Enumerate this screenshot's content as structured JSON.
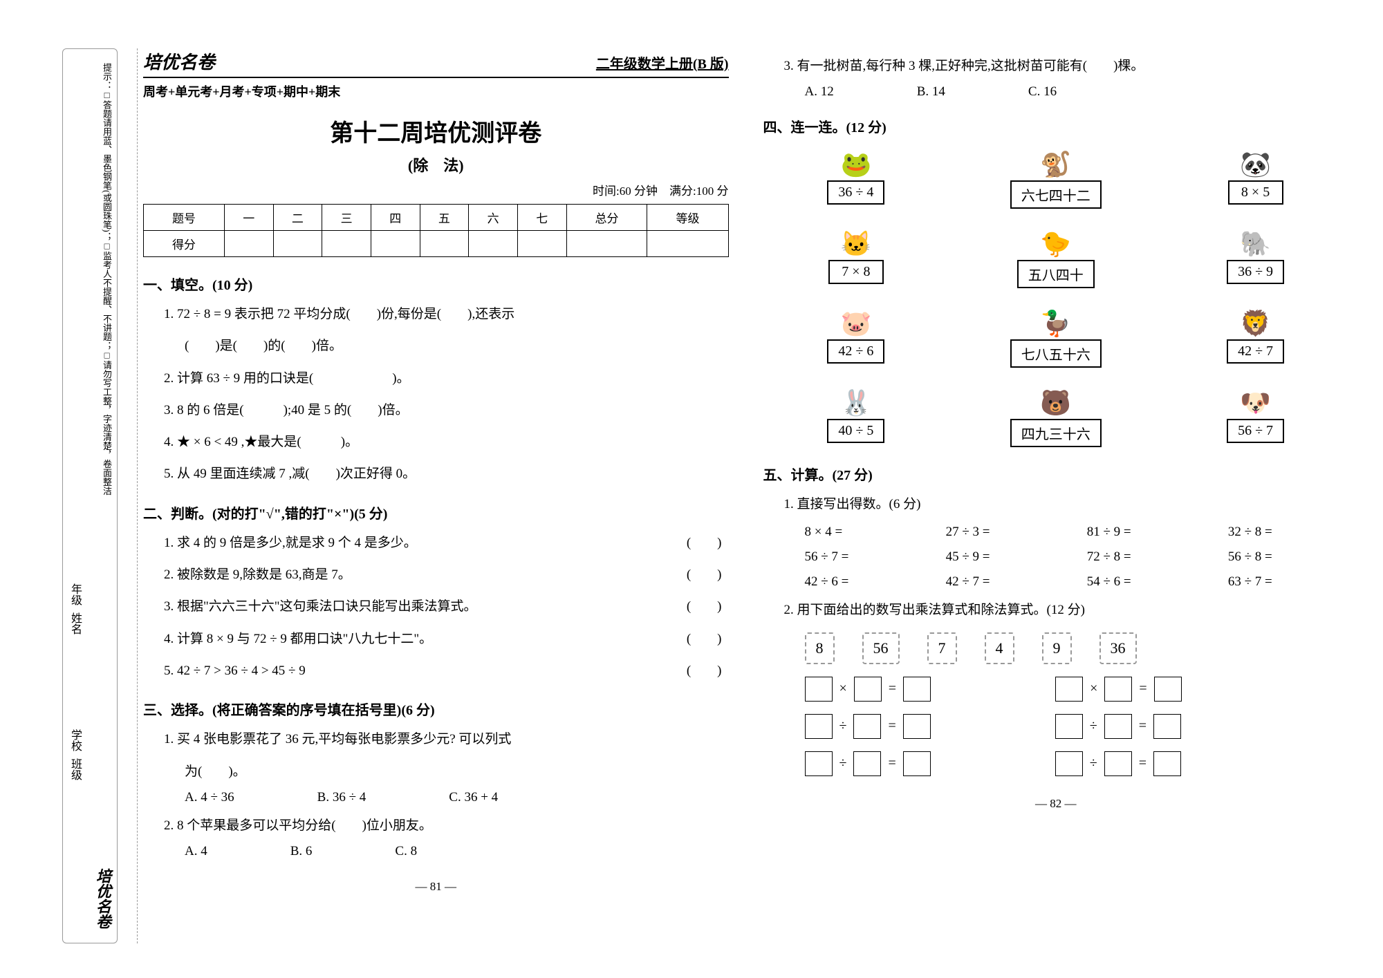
{
  "sidebar": {
    "tips": "提示：□答题请用蓝、墨色钢笔(或圆珠笔)；□监考人不提醒、不讲题；□请勿写工整，字迹清楚，卷面整洁",
    "grade_label": "年级",
    "name_label": "姓名",
    "school_label": "学校",
    "class_label": "班级",
    "brand": "培优名卷",
    "brand_sub": "周考+单元考+月考+专项+期中+期末"
  },
  "header": {
    "brand": "培优名卷",
    "grade": "二年级数学上册(B 版)",
    "sub": "周考+单元考+月考+专项+期中+期末",
    "title": "第十二周培优测评卷",
    "subtitle": "(除　法)",
    "time": "时间:60 分钟　满分:100 分"
  },
  "scoretable": {
    "h0": "题号",
    "h1": "一",
    "h2": "二",
    "h3": "三",
    "h4": "四",
    "h5": "五",
    "h6": "六",
    "h7": "七",
    "h8": "总分",
    "h9": "等级",
    "r0": "得分"
  },
  "s1": {
    "title": "一、填空。(10 分)",
    "q1": "1. 72 ÷ 8 = 9 表示把 72 平均分成(　　)份,每份是(　　),还表示",
    "q1b": "(　　)是(　　)的(　　)倍。",
    "q2": "2. 计算 63 ÷ 9 用的口诀是(　　　　　　)。",
    "q3": "3. 8 的 6 倍是(　　　);40 是 5 的(　　)倍。",
    "q4": "4. ★ × 6 < 49 ,★最大是(　　　)。",
    "q5": "5. 从 49 里面连续减 7 ,减(　　)次正好得 0。"
  },
  "s2": {
    "title": "二、判断。(对的打\"√\",错的打\"×\")(5 分)",
    "q1": "1. 求 4 的 9 倍是多少,就是求 9 个 4 是多少。",
    "q2": "2. 被除数是 9,除数是 63,商是 7。",
    "q3": "3. 根据\"六六三十六\"这句乘法口诀只能写出乘法算式。",
    "q4": "4. 计算 8 × 9 与 72 ÷ 9 都用口诀\"八九七十二\"。",
    "q5": "5. 42 ÷ 7 > 36 ÷ 4 > 45 ÷ 9",
    "paren": "(　　)"
  },
  "s3": {
    "title": "三、选择。(将正确答案的序号填在括号里)(6 分)",
    "q1": "1. 买 4 张电影票花了 36 元,平均每张电影票多少元? 可以列式",
    "q1b": "为(　　)。",
    "q1a": "A. 4 ÷ 36",
    "q1bb": "B. 36 ÷ 4",
    "q1c": "C. 36 + 4",
    "q2": "2. 8 个苹果最多可以平均分给(　　)位小朋友。",
    "q2a": "A. 4",
    "q2b": "B. 6",
    "q2c": "C. 8",
    "q3": "3. 有一批树苗,每行种 3 棵,正好种完,这批树苗可能有(　　)棵。",
    "q3a": "A. 12",
    "q3b": "B. 14",
    "q3c": "C. 16"
  },
  "s4": {
    "title": "四、连一连。(12 分)",
    "items": [
      {
        "emoji": "🐸",
        "label": "36 ÷ 4"
      },
      {
        "emoji": "🐒",
        "label": "六七四十二"
      },
      {
        "emoji": "🐼",
        "label": "8 × 5"
      },
      {
        "emoji": "🐱",
        "label": "7 × 8"
      },
      {
        "emoji": "🐤",
        "label": "五八四十"
      },
      {
        "emoji": "🐘",
        "label": "36 ÷ 9"
      },
      {
        "emoji": "🐷",
        "label": "42 ÷ 6"
      },
      {
        "emoji": "🦆",
        "label": "七八五十六"
      },
      {
        "emoji": "🦁",
        "label": "42 ÷ 7"
      },
      {
        "emoji": "🐰",
        "label": "40 ÷ 5"
      },
      {
        "emoji": "🐻",
        "label": "四九三十六"
      },
      {
        "emoji": "🐶",
        "label": "56 ÷ 7"
      }
    ]
  },
  "s5": {
    "title": "五、计算。(27 分)",
    "p1": "1. 直接写出得数。(6 分)",
    "calc": [
      "8 × 4 =",
      "27 ÷ 3 =",
      "81 ÷ 9 =",
      "32 ÷ 8 =",
      "56 ÷ 7 =",
      "45 ÷ 9 =",
      "72 ÷ 8 =",
      "56 ÷ 8 =",
      "42 ÷ 6 =",
      "42 ÷ 7 =",
      "54 ÷ 6 =",
      "63 ÷ 7 ="
    ],
    "p2": "2. 用下面给出的数写出乘法算式和除法算式。(12 分)",
    "cards": [
      "8",
      "56",
      "7",
      "4",
      "9",
      "36"
    ]
  },
  "ops": {
    "times": "×",
    "div": "÷",
    "eq": "="
  },
  "pg": {
    "p81": "— 81 —",
    "p82": "— 82 —"
  }
}
